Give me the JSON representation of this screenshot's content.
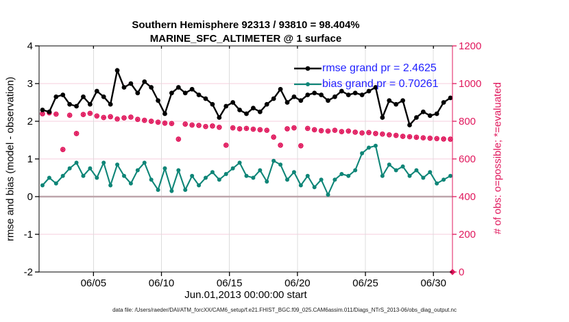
{
  "title": {
    "line1": "Southern Hemisphere 92313 / 93810 = 98.404%",
    "line2": "MARINE_SFC_ALTIMETER @ 1 surface"
  },
  "axes": {
    "left": {
      "label": "rmse and bias (model - observation)",
      "tick_labels": [
        "4",
        "3",
        "2",
        "1",
        "0",
        "-1",
        "-2"
      ],
      "tick_values": [
        4,
        3,
        2,
        1,
        0,
        -1,
        -2
      ],
      "range": [
        -2,
        4
      ]
    },
    "right": {
      "label": "# of obs: o=possible; *=evaluated",
      "tick_labels": [
        "1200",
        "1000",
        "800",
        "600",
        "400",
        "200",
        "0"
      ],
      "tick_values": [
        1200,
        1000,
        800,
        600,
        400,
        200,
        0
      ],
      "range": [
        0,
        1200
      ]
    },
    "x": {
      "label": "Jun.01,2013 00:00:00 start",
      "tick_labels": [
        "06/05",
        "06/10",
        "06/15",
        "06/20",
        "06/25",
        "06/30"
      ],
      "tick_days": [
        4,
        9,
        14,
        19,
        24,
        29
      ],
      "range_days": [
        0,
        30.4
      ]
    }
  },
  "legend": [
    {
      "label": "rmse grand pr = 2.4625",
      "color": "#000000"
    },
    {
      "label": "bias grand pr = 0.70261",
      "color": "#0e8577"
    }
  ],
  "footer": {
    "text": "data file: /Users/raeder/DAI/ATM_forcXX/CAM6_setup/f.e21.FHIST_BGC.f09_025.CAM6assim.011/Diags_NTrS_2013-06/obs_diag_output.nc"
  },
  "colors": {
    "rmse": "#000000",
    "bias": "#0e8577",
    "obs": "#e0175c",
    "legend_text": "#2222ff",
    "v_grid": "#dcdcdc",
    "h_grid": "#f5cedd",
    "zero_line": "#bda4aa"
  },
  "chart_data": {
    "type": "line",
    "x_units": "days since Jun.01,2013 00:00:00",
    "x_days": [
      0.25,
      0.75,
      1.25,
      1.75,
      2.25,
      2.75,
      3.25,
      3.75,
      4.25,
      4.75,
      5.25,
      5.75,
      6.25,
      6.75,
      7.25,
      7.75,
      8.25,
      8.75,
      9.25,
      9.75,
      10.25,
      10.75,
      11.25,
      11.75,
      12.25,
      12.75,
      13.25,
      13.75,
      14.25,
      14.75,
      15.25,
      15.75,
      16.25,
      16.75,
      17.25,
      17.75,
      18.25,
      18.75,
      19.25,
      19.75,
      20.25,
      20.75,
      21.25,
      21.75,
      22.25,
      22.75,
      23.25,
      23.75,
      24.25,
      24.75,
      25.25,
      25.75,
      26.25,
      26.75,
      27.25,
      27.75,
      28.25,
      28.75,
      29.25,
      29.75,
      30.25
    ],
    "series": [
      {
        "name": "rmse",
        "axis": "left",
        "marker": "filled-circle",
        "grand_pr": 2.4625,
        "values": [
          2.3,
          2.25,
          2.65,
          2.7,
          2.45,
          2.4,
          2.65,
          2.45,
          2.8,
          2.65,
          2.45,
          3.35,
          2.9,
          3.0,
          2.75,
          3.05,
          2.9,
          2.55,
          2.2,
          2.75,
          2.9,
          2.75,
          2.85,
          2.7,
          2.6,
          2.45,
          2.1,
          2.4,
          2.5,
          2.3,
          2.2,
          2.35,
          2.25,
          2.45,
          2.6,
          2.85,
          2.5,
          2.65,
          2.55,
          2.7,
          2.75,
          2.7,
          2.55,
          2.65,
          2.8,
          2.7,
          2.75,
          2.7,
          2.8,
          2.9,
          2.1,
          2.55,
          2.45,
          2.55,
          1.9,
          2.1,
          2.25,
          2.15,
          2.2,
          2.5,
          2.62
        ]
      },
      {
        "name": "bias",
        "axis": "left",
        "marker": "filled-circle",
        "grand_pr": 0.70261,
        "values": [
          0.3,
          0.5,
          0.35,
          0.55,
          0.75,
          0.9,
          0.55,
          0.75,
          0.5,
          0.9,
          0.3,
          0.85,
          0.55,
          0.35,
          0.7,
          0.9,
          0.45,
          0.18,
          0.75,
          0.15,
          0.7,
          0.18,
          0.55,
          0.3,
          0.5,
          0.65,
          0.45,
          0.6,
          0.75,
          0.9,
          0.55,
          0.5,
          0.7,
          0.4,
          0.95,
          0.85,
          0.45,
          0.65,
          0.3,
          0.55,
          0.25,
          0.45,
          0.05,
          0.45,
          0.6,
          0.55,
          0.7,
          1.15,
          1.3,
          1.35,
          0.55,
          0.85,
          0.7,
          0.8,
          0.55,
          0.7,
          0.5,
          0.65,
          0.35,
          0.45,
          0.55
        ]
      },
      {
        "name": "obs_count",
        "axis": "right",
        "marker": "circle-and-asterisk",
        "note": "o=possible and *=evaluated plotted at same points; final point drops to 0 (diamond)",
        "x_days": [
          0.25,
          0.75,
          1.25,
          1.75,
          2.25,
          2.75,
          3.25,
          3.75,
          4.25,
          4.75,
          5.25,
          5.75,
          6.25,
          6.75,
          7.25,
          7.75,
          8.25,
          8.75,
          9.25,
          9.75,
          10.25,
          10.75,
          11.25,
          11.75,
          12.25,
          12.75,
          13.25,
          13.75,
          14.25,
          14.75,
          15.25,
          15.75,
          16.25,
          16.75,
          17.25,
          17.75,
          18.25,
          18.75,
          19.25,
          19.75,
          20.25,
          20.75,
          21.25,
          21.75,
          22.25,
          22.75,
          23.25,
          23.75,
          24.25,
          24.75,
          25.25,
          25.75,
          26.25,
          26.75,
          27.25,
          27.75,
          28.25,
          28.75,
          29.25,
          29.75,
          30.25,
          30.4
        ],
        "values": [
          840,
          845,
          838,
          650,
          832,
          735,
          836,
          842,
          828,
          820,
          824,
          812,
          818,
          822,
          810,
          805,
          800,
          795,
          790,
          788,
          705,
          785,
          780,
          778,
          772,
          775,
          768,
          673,
          765,
          760,
          762,
          758,
          755,
          752,
          716,
          673,
          760,
          765,
          670,
          762,
          755,
          750,
          748,
          752,
          745,
          748,
          742,
          738,
          740,
          735,
          732,
          728,
          725,
          720,
          718,
          715,
          712,
          710,
          708,
          706,
          705,
          0
        ]
      }
    ],
    "ylim_left": [
      -2,
      4
    ],
    "ylim_right": [
      0,
      1200
    ],
    "grid": true,
    "legend_position": "top-right-inside"
  }
}
